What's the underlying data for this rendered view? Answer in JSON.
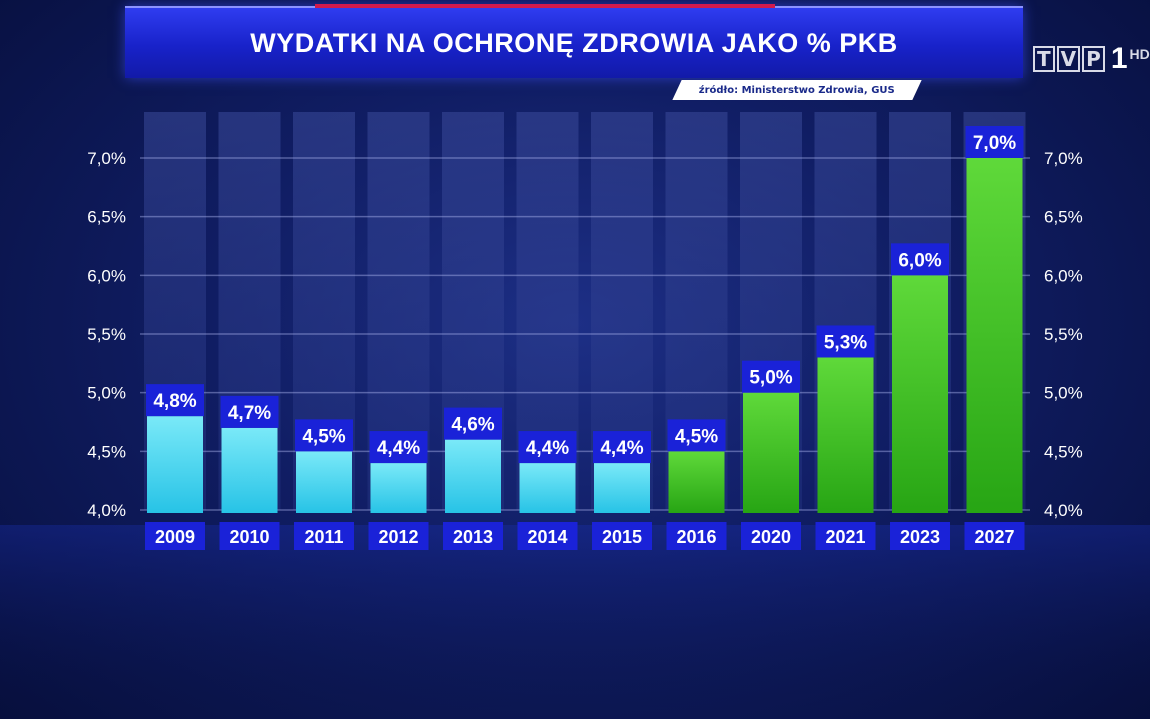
{
  "header": {
    "title": "WYDATKI NA OCHRONĘ ZDROWIA JAKO % PKB",
    "source": "źródło: Ministerstwo Zdrowia, GUS"
  },
  "logo": {
    "text_boxes": [
      "T",
      "V",
      "P"
    ],
    "number": "1",
    "suffix": "HD"
  },
  "colors": {
    "cyan_bar": "#3fd8ef",
    "green_bar": "#3fc21e",
    "label_box": "#1a22d8",
    "background": "#0d1a5c"
  },
  "chart_data": {
    "type": "bar",
    "title": "WYDATKI NA OCHRONĘ ZDROWIA JAKO % PKB",
    "xlabel": "",
    "ylabel": "",
    "categories": [
      "2009",
      "2010",
      "2011",
      "2012",
      "2013",
      "2014",
      "2015",
      "2016",
      "2020",
      "2021",
      "2023",
      "2027"
    ],
    "values": [
      4.8,
      4.7,
      4.5,
      4.4,
      4.6,
      4.4,
      4.4,
      4.5,
      5.0,
      5.3,
      6.0,
      7.0
    ],
    "value_labels": [
      "4,8%",
      "4,7%",
      "4,5%",
      "4,4%",
      "4,6%",
      "4,4%",
      "4,4%",
      "4,5%",
      "5,0%",
      "5,3%",
      "6,0%",
      "7,0%"
    ],
    "bar_colors": [
      "cyan",
      "cyan",
      "cyan",
      "cyan",
      "cyan",
      "cyan",
      "cyan",
      "green",
      "green",
      "green",
      "green",
      "green"
    ],
    "ylim": [
      4.0,
      7.0
    ],
    "yticks": [
      4.0,
      4.5,
      5.0,
      5.5,
      6.0,
      6.5,
      7.0
    ],
    "ytick_labels": [
      "4,0%",
      "4,5%",
      "5,0%",
      "5,5%",
      "6,0%",
      "6,5%",
      "7,0%"
    ],
    "grid": true,
    "axis_labels_both_sides": true
  }
}
